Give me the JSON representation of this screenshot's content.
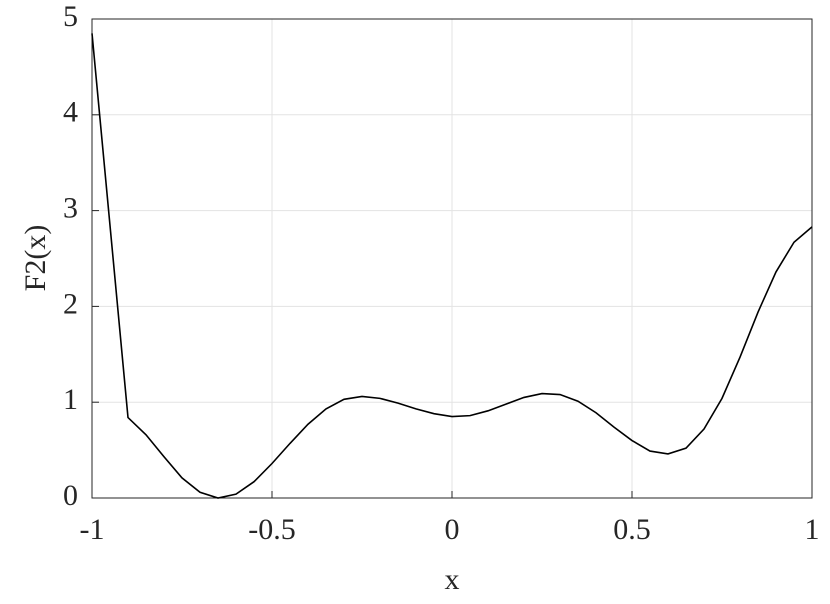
{
  "chart_data": {
    "type": "line",
    "x_label": "x",
    "y_label": "F2(x)",
    "x": [
      -1,
      -0.9,
      -0.85,
      -0.8,
      -0.75,
      -0.7,
      -0.65,
      -0.6,
      -0.55,
      -0.5,
      -0.45,
      -0.4,
      -0.35,
      -0.3,
      -0.25,
      -0.2,
      -0.15,
      -0.1,
      -0.05,
      0,
      0.05,
      0.1,
      0.15,
      0.2,
      0.25,
      0.3,
      0.35,
      0.4,
      0.45,
      0.5,
      0.55,
      0.6,
      0.65,
      0.7,
      0.75,
      0.8,
      0.85,
      0.9,
      0.95,
      1
    ],
    "series": [
      {
        "color": "#000000",
        "values": [
          4.85,
          0.84,
          0.66,
          0.43,
          0.21,
          0.06,
          0.0,
          0.04,
          0.17,
          0.36,
          0.57,
          0.77,
          0.93,
          1.03,
          1.06,
          1.04,
          0.99,
          0.93,
          0.88,
          0.85,
          0.86,
          0.91,
          0.98,
          1.05,
          1.09,
          1.08,
          1.01,
          0.89,
          0.74,
          0.6,
          0.49,
          0.46,
          0.52,
          0.72,
          1.04,
          1.47,
          1.94,
          2.36,
          2.67,
          2.83
        ]
      }
    ],
    "xlim": [
      -1,
      1
    ],
    "xticks": [
      -1,
      -0.5,
      0,
      0.5,
      1
    ],
    "ylim": [
      0,
      5
    ],
    "yticks": [
      0,
      1,
      2,
      3,
      4,
      5
    ],
    "grid": true
  }
}
